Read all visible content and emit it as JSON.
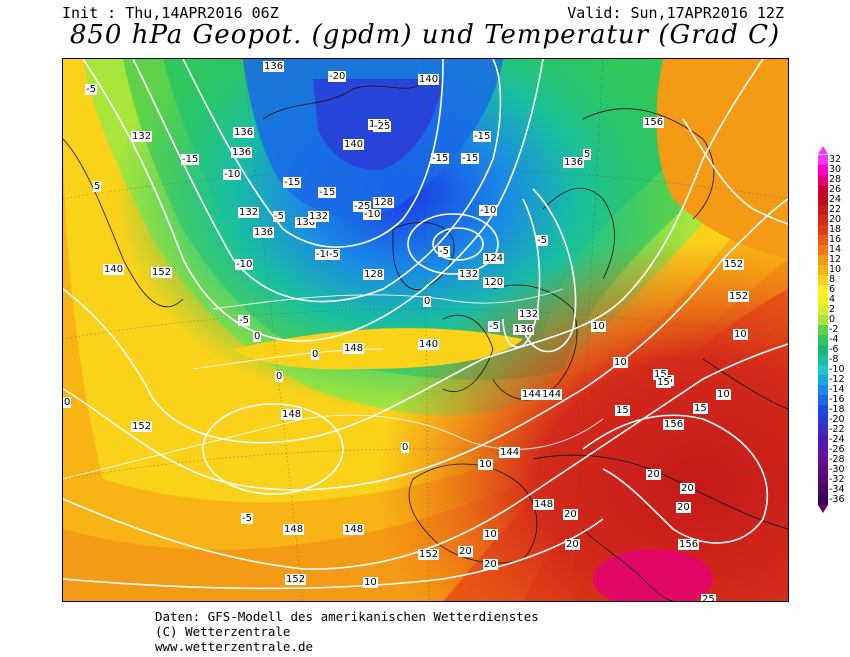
{
  "header": {
    "init": "Init : Thu,14APR2016 06Z",
    "valid": "Valid: Sun,17APR2016 12Z",
    "title": "850 hPa Geopot. (gpdm) und Temperatur (Grad C)"
  },
  "footer": {
    "line1": "Daten: GFS-Modell des amerikanischen Wetterdienstes",
    "line2": "(C) Wetterzentrale",
    "line3": "www.wetterzentrale.de"
  },
  "legend": {
    "labels": [
      "32",
      "30",
      "28",
      "26",
      "24",
      "22",
      "20",
      "18",
      "16",
      "14",
      "12",
      "10",
      "8",
      "6",
      "4",
      "2",
      "0",
      "-2",
      "-4",
      "-6",
      "-8",
      "-10",
      "-12",
      "-14",
      "-16",
      "-18",
      "-20",
      "-22",
      "-24",
      "-26",
      "-28",
      "-30",
      "-32",
      "-34",
      "-36"
    ],
    "colors": [
      "#ff33ff",
      "#ff00cc",
      "#e6007a",
      "#cc0033",
      "#b80f1a",
      "#c41a1a",
      "#d42a1a",
      "#e23b14",
      "#ea5a14",
      "#f07814",
      "#f59a14",
      "#f8b414",
      "#fbd21a",
      "#fff02a",
      "#f2f21e",
      "#d6ef2a",
      "#a8e63c",
      "#5fd24a",
      "#2ec85c",
      "#17b878",
      "#19bfa0",
      "#19c8c8",
      "#1aa8dc",
      "#1a8ae6",
      "#1a6ae6",
      "#1a4ae6",
      "#2a3ad6",
      "#3a2ac6",
      "#4a1ab6",
      "#5a14a6",
      "#6a0e96",
      "#600a80",
      "#560870",
      "#4a0660",
      "#3a0450"
    ]
  },
  "geopotential_labels": [
    "136",
    "140",
    "136",
    "132",
    "136",
    "132",
    "128",
    "140",
    "144",
    "136",
    "136",
    "132",
    "124",
    "120",
    "132",
    "136",
    "128",
    "132",
    "140",
    "140",
    "148",
    "144",
    "144",
    "144",
    "148",
    "152",
    "148",
    "148",
    "152",
    "156",
    "156",
    "152",
    "152",
    "152",
    "156",
    "148",
    "152",
    "136"
  ],
  "temperature_labels": [
    "-5",
    "-15",
    "-10",
    "-15",
    "-20",
    "-25",
    "-25",
    "-15",
    "-15",
    "-15",
    "-10",
    "-15",
    "-10",
    "-10",
    "-5",
    "-5",
    "-10",
    "-5",
    "-5",
    "-5",
    "0",
    "0",
    "0",
    "-5",
    "0",
    "0",
    "0",
    "10",
    "10",
    "10",
    "15",
    "15",
    "15",
    "15",
    "15",
    "20",
    "20",
    "20",
    "20",
    "20",
    "20",
    "20",
    "25",
    "10",
    "10",
    "10",
    "10",
    "5",
    "5",
    "-5"
  ]
}
